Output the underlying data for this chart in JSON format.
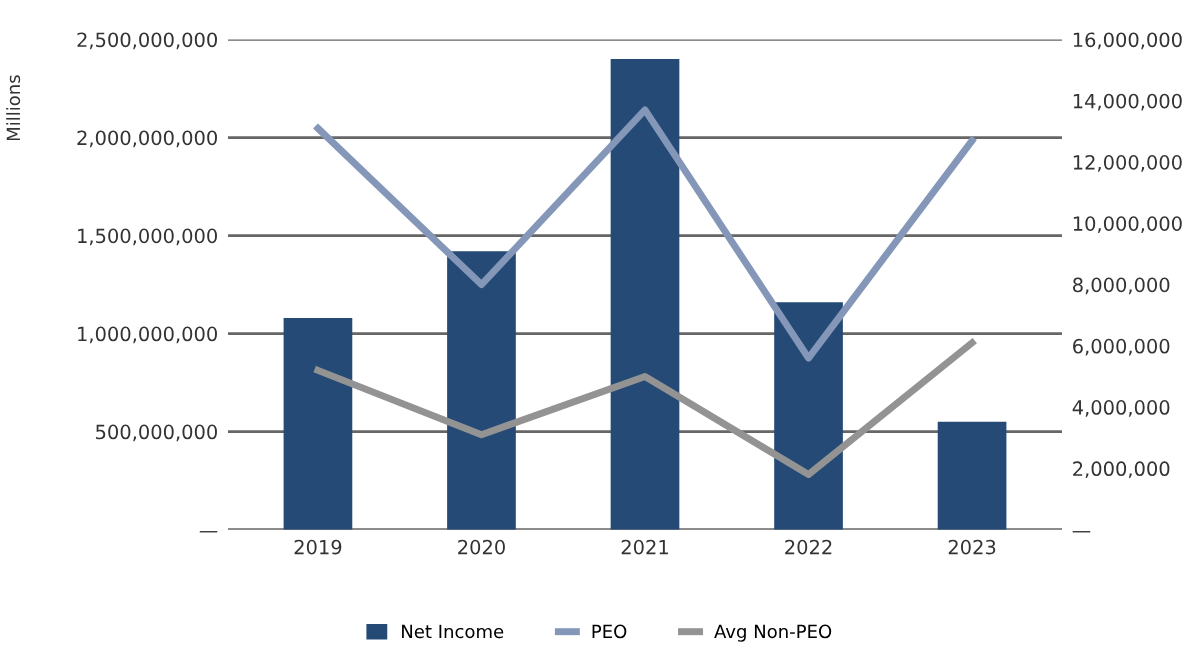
{
  "chart_data": {
    "type": "bar",
    "ylabel": "Millions",
    "categories": [
      "2019",
      "2020",
      "2021",
      "2022",
      "2023"
    ],
    "series": [
      {
        "name": "Net Income",
        "color": "#244a75",
        "values": [
          1080000000,
          1420000000,
          2400000000,
          1160000000,
          550000000
        ]
      },
      {
        "name": "PEO",
        "type": "line",
        "axis": "y2",
        "color": "#8497b9",
        "values": [
          13100000,
          8000000,
          13700000,
          5600000,
          12700000
        ]
      },
      {
        "name": "Avg Non-PEO",
        "type": "line",
        "axis": "y2",
        "color": "#939393",
        "values": [
          5200000,
          3100000,
          5000000,
          1800000,
          6100000
        ]
      }
    ],
    "ylim": [
      0,
      2500000000
    ],
    "yticks": [
      {
        "value": 0,
        "label": "—"
      },
      {
        "value": 500000000,
        "label": "500,000,000"
      },
      {
        "value": 1000000000,
        "label": "1,000,000,000"
      },
      {
        "value": 1500000000,
        "label": "1,500,000,000"
      },
      {
        "value": 2000000000,
        "label": "2,000,000,000"
      },
      {
        "value": 2500000000,
        "label": "2,500,000,000"
      }
    ],
    "y2lim": [
      0,
      16000000
    ],
    "y2ticks": [
      {
        "value": 0,
        "label": "—"
      },
      {
        "value": 2000000,
        "label": "2,000,000"
      },
      {
        "value": 4000000,
        "label": "4,000,000"
      },
      {
        "value": 6000000,
        "label": "6,000,000"
      },
      {
        "value": 8000000,
        "label": "8,000,000"
      },
      {
        "value": 10000000,
        "label": "10,000,000"
      },
      {
        "value": 12000000,
        "label": "12,000,000"
      },
      {
        "value": 14000000,
        "label": "14,000,000"
      },
      {
        "value": 16000000,
        "label": "16,000,000"
      }
    ],
    "grid": "y",
    "legend": "bottom",
    "line_style": "solid",
    "marker": "none"
  }
}
